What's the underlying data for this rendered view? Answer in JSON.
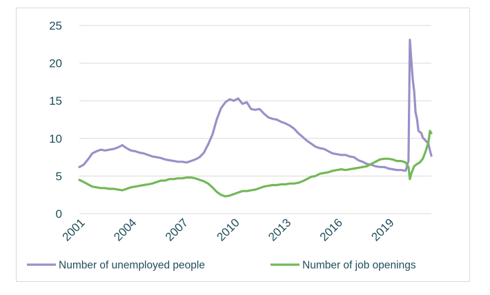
{
  "chart_data": {
    "type": "line",
    "title": "",
    "xlabel": "",
    "ylabel": "",
    "ylim": [
      0,
      25
    ],
    "xlim": [
      2001,
      2021.5
    ],
    "yticks": [
      0,
      5,
      10,
      15,
      20,
      25
    ],
    "xticks": [
      "2001",
      "2004",
      "2007",
      "2010",
      "2013",
      "2016",
      "2019"
    ],
    "grid": "horizontal",
    "legend_position": "bottom",
    "series": [
      {
        "name": "Number of unemployed people",
        "color": "#9990c8",
        "points": [
          [
            2001.0,
            6.2
          ],
          [
            2001.25,
            6.5
          ],
          [
            2001.5,
            7.2
          ],
          [
            2001.75,
            8.0
          ],
          [
            2002.0,
            8.3
          ],
          [
            2002.25,
            8.5
          ],
          [
            2002.5,
            8.4
          ],
          [
            2002.75,
            8.5
          ],
          [
            2003.0,
            8.6
          ],
          [
            2003.25,
            8.8
          ],
          [
            2003.5,
            9.1
          ],
          [
            2003.75,
            8.7
          ],
          [
            2004.0,
            8.4
          ],
          [
            2004.25,
            8.3
          ],
          [
            2004.5,
            8.1
          ],
          [
            2004.75,
            8.0
          ],
          [
            2005.0,
            7.8
          ],
          [
            2005.25,
            7.6
          ],
          [
            2005.5,
            7.5
          ],
          [
            2005.75,
            7.4
          ],
          [
            2006.0,
            7.2
          ],
          [
            2006.25,
            7.1
          ],
          [
            2006.5,
            7.0
          ],
          [
            2006.75,
            6.9
          ],
          [
            2007.0,
            6.9
          ],
          [
            2007.25,
            6.8
          ],
          [
            2007.5,
            7.0
          ],
          [
            2007.75,
            7.2
          ],
          [
            2008.0,
            7.5
          ],
          [
            2008.25,
            8.1
          ],
          [
            2008.5,
            9.2
          ],
          [
            2008.75,
            10.5
          ],
          [
            2009.0,
            12.5
          ],
          [
            2009.25,
            14.0
          ],
          [
            2009.5,
            14.8
          ],
          [
            2009.75,
            15.2
          ],
          [
            2010.0,
            15.0
          ],
          [
            2010.25,
            15.3
          ],
          [
            2010.5,
            14.6
          ],
          [
            2010.75,
            14.8
          ],
          [
            2011.0,
            13.9
          ],
          [
            2011.25,
            13.8
          ],
          [
            2011.5,
            13.9
          ],
          [
            2011.75,
            13.3
          ],
          [
            2012.0,
            12.8
          ],
          [
            2012.25,
            12.6
          ],
          [
            2012.5,
            12.5
          ],
          [
            2012.75,
            12.2
          ],
          [
            2013.0,
            12.0
          ],
          [
            2013.25,
            11.7
          ],
          [
            2013.5,
            11.3
          ],
          [
            2013.75,
            10.7
          ],
          [
            2014.0,
            10.2
          ],
          [
            2014.25,
            9.7
          ],
          [
            2014.5,
            9.3
          ],
          [
            2014.75,
            8.9
          ],
          [
            2015.0,
            8.7
          ],
          [
            2015.25,
            8.6
          ],
          [
            2015.5,
            8.3
          ],
          [
            2015.75,
            8.0
          ],
          [
            2016.0,
            7.9
          ],
          [
            2016.25,
            7.8
          ],
          [
            2016.5,
            7.8
          ],
          [
            2016.75,
            7.6
          ],
          [
            2017.0,
            7.5
          ],
          [
            2017.25,
            7.1
          ],
          [
            2017.5,
            6.9
          ],
          [
            2017.75,
            6.6
          ],
          [
            2018.0,
            6.5
          ],
          [
            2018.25,
            6.3
          ],
          [
            2018.5,
            6.2
          ],
          [
            2018.75,
            6.2
          ],
          [
            2019.0,
            6.0
          ],
          [
            2019.25,
            5.9
          ],
          [
            2019.5,
            5.8
          ],
          [
            2019.75,
            5.8
          ],
          [
            2020.0,
            5.7
          ],
          [
            2020.17,
            7.0
          ],
          [
            2020.25,
            23.1
          ],
          [
            2020.33,
            20.5
          ],
          [
            2020.42,
            17.8
          ],
          [
            2020.5,
            16.3
          ],
          [
            2020.58,
            13.5
          ],
          [
            2020.67,
            12.5
          ],
          [
            2020.75,
            11.0
          ],
          [
            2020.92,
            10.7
          ],
          [
            2021.0,
            10.1
          ],
          [
            2021.17,
            9.7
          ],
          [
            2021.33,
            9.3
          ],
          [
            2021.42,
            8.4
          ],
          [
            2021.5,
            7.7
          ]
        ]
      },
      {
        "name": "Number of job openings",
        "color": "#72b857",
        "points": [
          [
            2001.0,
            4.5
          ],
          [
            2001.25,
            4.2
          ],
          [
            2001.5,
            3.9
          ],
          [
            2001.75,
            3.6
          ],
          [
            2002.0,
            3.5
          ],
          [
            2002.25,
            3.4
          ],
          [
            2002.5,
            3.4
          ],
          [
            2002.75,
            3.3
          ],
          [
            2003.0,
            3.3
          ],
          [
            2003.25,
            3.2
          ],
          [
            2003.5,
            3.1
          ],
          [
            2003.75,
            3.3
          ],
          [
            2004.0,
            3.5
          ],
          [
            2004.25,
            3.6
          ],
          [
            2004.5,
            3.7
          ],
          [
            2004.75,
            3.8
          ],
          [
            2005.0,
            3.9
          ],
          [
            2005.25,
            4.0
          ],
          [
            2005.5,
            4.2
          ],
          [
            2005.75,
            4.4
          ],
          [
            2006.0,
            4.4
          ],
          [
            2006.25,
            4.6
          ],
          [
            2006.5,
            4.6
          ],
          [
            2006.75,
            4.7
          ],
          [
            2007.0,
            4.7
          ],
          [
            2007.25,
            4.8
          ],
          [
            2007.5,
            4.8
          ],
          [
            2007.75,
            4.7
          ],
          [
            2008.0,
            4.5
          ],
          [
            2008.25,
            4.3
          ],
          [
            2008.5,
            4.0
          ],
          [
            2008.75,
            3.5
          ],
          [
            2009.0,
            2.9
          ],
          [
            2009.25,
            2.5
          ],
          [
            2009.5,
            2.3
          ],
          [
            2009.75,
            2.4
          ],
          [
            2010.0,
            2.6
          ],
          [
            2010.25,
            2.8
          ],
          [
            2010.5,
            3.0
          ],
          [
            2010.75,
            3.0
          ],
          [
            2011.0,
            3.1
          ],
          [
            2011.25,
            3.2
          ],
          [
            2011.5,
            3.4
          ],
          [
            2011.75,
            3.6
          ],
          [
            2012.0,
            3.7
          ],
          [
            2012.25,
            3.8
          ],
          [
            2012.5,
            3.8
          ],
          [
            2012.75,
            3.9
          ],
          [
            2013.0,
            3.9
          ],
          [
            2013.25,
            4.0
          ],
          [
            2013.5,
            4.0
          ],
          [
            2013.75,
            4.1
          ],
          [
            2014.0,
            4.3
          ],
          [
            2014.25,
            4.6
          ],
          [
            2014.5,
            4.9
          ],
          [
            2014.75,
            5.0
          ],
          [
            2015.0,
            5.3
          ],
          [
            2015.25,
            5.4
          ],
          [
            2015.5,
            5.5
          ],
          [
            2015.75,
            5.7
          ],
          [
            2016.0,
            5.8
          ],
          [
            2016.25,
            5.9
          ],
          [
            2016.5,
            5.8
          ],
          [
            2016.75,
            5.9
          ],
          [
            2017.0,
            6.0
          ],
          [
            2017.25,
            6.1
          ],
          [
            2017.5,
            6.2
          ],
          [
            2017.75,
            6.3
          ],
          [
            2018.0,
            6.6
          ],
          [
            2018.25,
            6.9
          ],
          [
            2018.5,
            7.2
          ],
          [
            2018.75,
            7.3
          ],
          [
            2019.0,
            7.3
          ],
          [
            2019.25,
            7.2
          ],
          [
            2019.5,
            7.0
          ],
          [
            2019.75,
            7.0
          ],
          [
            2020.0,
            6.8
          ],
          [
            2020.17,
            6.2
          ],
          [
            2020.25,
            4.6
          ],
          [
            2020.33,
            5.3
          ],
          [
            2020.5,
            6.3
          ],
          [
            2020.67,
            6.6
          ],
          [
            2020.83,
            6.8
          ],
          [
            2021.0,
            7.3
          ],
          [
            2021.17,
            8.3
          ],
          [
            2021.33,
            9.5
          ],
          [
            2021.42,
            11.0
          ],
          [
            2021.5,
            10.7
          ]
        ]
      }
    ]
  }
}
